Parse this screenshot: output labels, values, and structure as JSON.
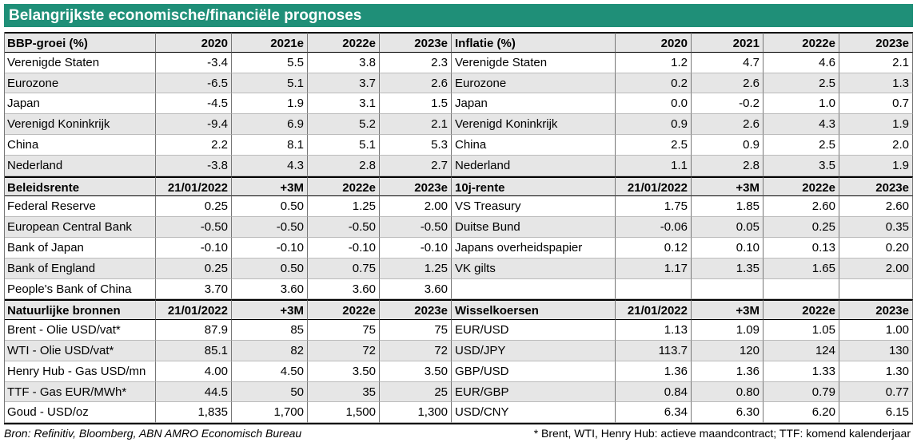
{
  "header": {
    "title": "Belangrijkste economische/financiële prognoses"
  },
  "sections": [
    {
      "left": {
        "header": [
          "BBP-groei (%)",
          "2020",
          "2021e",
          "2022e",
          "2023e"
        ],
        "rows": [
          [
            "Verenigde Staten",
            "-3.4",
            "5.5",
            "3.8",
            "2.3"
          ],
          [
            "Eurozone",
            "-6.5",
            "5.1",
            "3.7",
            "2.6"
          ],
          [
            "Japan",
            "-4.5",
            "1.9",
            "3.1",
            "1.5"
          ],
          [
            "Verenigd Koninkrijk",
            "-9.4",
            "6.9",
            "5.2",
            "2.1"
          ],
          [
            "China",
            "2.2",
            "8.1",
            "5.1",
            "5.3"
          ],
          [
            "Nederland",
            "-3.8",
            "4.3",
            "2.8",
            "2.7"
          ]
        ]
      },
      "right": {
        "header": [
          "Inflatie (%)",
          "2020",
          "2021",
          "2022e",
          "2023e"
        ],
        "rows": [
          [
            "Verenigde Staten",
            "1.2",
            "4.7",
            "4.6",
            "2.1"
          ],
          [
            "Eurozone",
            "0.2",
            "2.6",
            "2.5",
            "1.3"
          ],
          [
            "Japan",
            "0.0",
            "-0.2",
            "1.0",
            "0.7"
          ],
          [
            "Verenigd Koninkrijk",
            "0.9",
            "2.6",
            "4.3",
            "1.9"
          ],
          [
            "China",
            "2.5",
            "0.9",
            "2.5",
            "2.0"
          ],
          [
            "Nederland",
            "1.1",
            "2.8",
            "3.5",
            "1.9"
          ]
        ]
      }
    },
    {
      "left": {
        "header": [
          "Beleidsrente",
          "21/01/2022",
          "+3M",
          "2022e",
          "2023e"
        ],
        "rows": [
          [
            "Federal Reserve",
            "0.25",
            "0.50",
            "1.25",
            "2.00"
          ],
          [
            "European Central Bank",
            "-0.50",
            "-0.50",
            "-0.50",
            "-0.50"
          ],
          [
            "Bank of Japan",
            "-0.10",
            "-0.10",
            "-0.10",
            "-0.10"
          ],
          [
            "Bank of England",
            "0.25",
            "0.50",
            "0.75",
            "1.25"
          ],
          [
            "People's Bank of China",
            "3.70",
            "3.60",
            "3.60",
            "3.60"
          ]
        ]
      },
      "right": {
        "header": [
          "10j-rente",
          "21/01/2022",
          "+3M",
          "2022e",
          "2023e"
        ],
        "rows": [
          [
            "VS Treasury",
            "1.75",
            "1.85",
            "2.60",
            "2.60"
          ],
          [
            "Duitse Bund",
            "-0.06",
            "0.05",
            "0.25",
            "0.35"
          ],
          [
            "Japans overheidspapier",
            "0.12",
            "0.10",
            "0.13",
            "0.20"
          ],
          [
            "VK gilts",
            "1.17",
            "1.35",
            "1.65",
            "2.00"
          ]
        ]
      }
    },
    {
      "left": {
        "header": [
          "Natuurlijke bronnen",
          "21/01/2022",
          "+3M",
          "2022e",
          "2023e"
        ],
        "rows": [
          [
            "Brent - Olie USD/vat*",
            "87.9",
            "85",
            "75",
            "75"
          ],
          [
            "WTI - Olie USD/vat*",
            "85.1",
            "82",
            "72",
            "72"
          ],
          [
            "Henry Hub - Gas USD/mn",
            "4.00",
            "4.50",
            "3.50",
            "3.50"
          ],
          [
            "TTF - Gas EUR/MWh*",
            "44.5",
            "50",
            "35",
            "25"
          ],
          [
            "Goud - USD/oz",
            "1,835",
            "1,700",
            "1,500",
            "1,300"
          ]
        ]
      },
      "right": {
        "header": [
          "Wisselkoersen",
          "21/01/2022",
          "+3M",
          "2022e",
          "2023e"
        ],
        "rows": [
          [
            "EUR/USD",
            "1.13",
            "1.09",
            "1.05",
            "1.00"
          ],
          [
            "USD/JPY",
            "113.7",
            "120",
            "124",
            "130"
          ],
          [
            "GBP/USD",
            "1.36",
            "1.36",
            "1.33",
            "1.30"
          ],
          [
            "EUR/GBP",
            "0.84",
            "0.80",
            "0.79",
            "0.77"
          ],
          [
            "USD/CNY",
            "6.34",
            "6.30",
            "6.20",
            "6.15"
          ]
        ]
      }
    }
  ],
  "footer": {
    "source": "Bron: Refinitiv, Bloomberg, ABN AMRO Economisch Bureau",
    "note": "* Brent, WTI, Henry Hub: actieve maandcontract; TTF: komend kalenderjaar"
  }
}
